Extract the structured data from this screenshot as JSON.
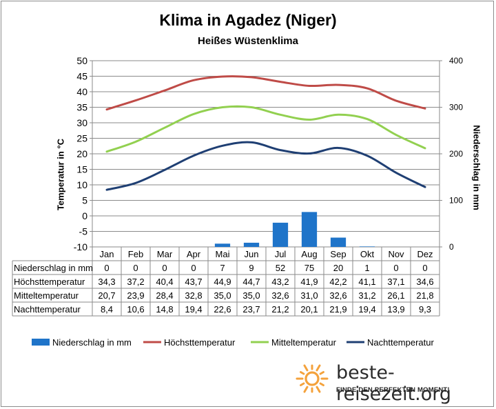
{
  "title": "Klima in Agadez (Niger)",
  "subtitle": "Heißes Wüstenklima",
  "brand": {
    "name": "beste-reisezeit.org",
    "tagline": "FINDE DEN PERFEKTEN MOMENT!",
    "sun_color": "#f4a23c"
  },
  "chart_data": {
    "type": "bar+line",
    "categories": [
      "Jan",
      "Feb",
      "Mar",
      "Apr",
      "Mai",
      "Jun",
      "Jul",
      "Aug",
      "Sep",
      "Okt",
      "Nov",
      "Dez"
    ],
    "ylabel_left": "Temperatur in °C",
    "ylabel_right": "Niederschlag in mm",
    "ylim_left": [
      -10,
      50
    ],
    "yticks_left": [
      "50",
      "45",
      "40",
      "35",
      "30",
      "25",
      "20",
      "15",
      "10",
      "5",
      "0",
      "-5",
      "-10"
    ],
    "ylim_right": [
      0,
      400
    ],
    "yticks_right": [
      "400",
      "300",
      "200",
      "100",
      "0"
    ],
    "grid": true,
    "legend_position": "bottom",
    "series": [
      {
        "name": "Niederschlag in mm",
        "type": "bar",
        "axis": "right",
        "color": "#1f74c9",
        "values": [
          0,
          0,
          0,
          0,
          7,
          9,
          52,
          75,
          20,
          1,
          0,
          0
        ],
        "labels": [
          "0",
          "0",
          "0",
          "0",
          "7",
          "9",
          "52",
          "75",
          "20",
          "1",
          "0",
          "0"
        ]
      },
      {
        "name": "Höchsttemperatur",
        "type": "line",
        "axis": "left",
        "color": "#bf4b47",
        "values": [
          34.3,
          37.2,
          40.4,
          43.7,
          44.9,
          44.7,
          43.2,
          41.9,
          42.2,
          41.1,
          37.1,
          34.6
        ],
        "labels": [
          "34,3",
          "37,2",
          "40,4",
          "43,7",
          "44,9",
          "44,7",
          "43,2",
          "41,9",
          "42,2",
          "41,1",
          "37,1",
          "34,6"
        ]
      },
      {
        "name": "Mitteltemperatur",
        "type": "line",
        "axis": "left",
        "color": "#92d050",
        "values": [
          20.7,
          23.9,
          28.4,
          32.8,
          35.0,
          35.0,
          32.6,
          31.0,
          32.6,
          31.2,
          26.1,
          21.8
        ],
        "labels": [
          "20,7",
          "23,9",
          "28,4",
          "32,8",
          "35,0",
          "35,0",
          "32,6",
          "31,0",
          "32,6",
          "31,2",
          "26,1",
          "21,8"
        ]
      },
      {
        "name": "Nachttemperatur",
        "type": "line",
        "axis": "left",
        "color": "#1f3f73",
        "values": [
          8.4,
          10.6,
          14.8,
          19.4,
          22.6,
          23.7,
          21.2,
          20.1,
          21.9,
          19.4,
          13.9,
          9.3
        ],
        "labels": [
          "8,4",
          "10,6",
          "14,8",
          "19,4",
          "22,6",
          "23,7",
          "21,2",
          "20,1",
          "21,9",
          "19,4",
          "13,9",
          "9,3"
        ]
      }
    ]
  }
}
